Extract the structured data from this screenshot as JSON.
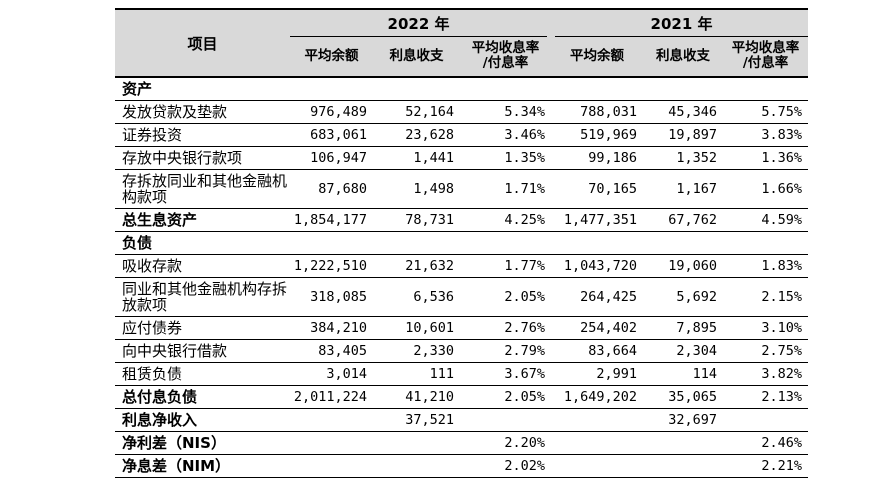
{
  "table": {
    "item_header": "项目",
    "year_groups": [
      {
        "label": "2022 年"
      },
      {
        "label": "2021 年"
      }
    ],
    "sub_columns": [
      {
        "label": "平均余额"
      },
      {
        "label": "利息收支"
      },
      {
        "line1": "平均收息率",
        "line2": "/付息率"
      },
      {
        "label": "平均余额"
      },
      {
        "label": "利息收支"
      },
      {
        "line1": "平均收息率",
        "line2": "/付息率"
      }
    ],
    "rows": [
      {
        "type": "section",
        "label": "资产"
      },
      {
        "type": "data",
        "label": "发放贷款及垫款",
        "cells": [
          "976,489",
          "52,164",
          "5.34%",
          "788,031",
          "45,346",
          "5.75%"
        ]
      },
      {
        "type": "data",
        "label": "证券投资",
        "cells": [
          "683,061",
          "23,628",
          "3.46%",
          "519,969",
          "19,897",
          "3.83%"
        ]
      },
      {
        "type": "data",
        "label": "存放中央银行款项",
        "cells": [
          "106,947",
          "1,441",
          "1.35%",
          "99,186",
          "1,352",
          "1.36%"
        ]
      },
      {
        "type": "data",
        "label": "存拆放同业和其他金融机构款项",
        "cells": [
          "87,680",
          "1,498",
          "1.71%",
          "70,165",
          "1,167",
          "1.66%"
        ]
      },
      {
        "type": "total",
        "label": "总生息资产",
        "cells": [
          "1,854,177",
          "78,731",
          "4.25%",
          "1,477,351",
          "67,762",
          "4.59%"
        ]
      },
      {
        "type": "section",
        "label": "负债"
      },
      {
        "type": "data",
        "label": "吸收存款",
        "cells": [
          "1,222,510",
          "21,632",
          "1.77%",
          "1,043,720",
          "19,060",
          "1.83%"
        ]
      },
      {
        "type": "data",
        "label": "同业和其他金融机构存拆放款项",
        "cells": [
          "318,085",
          "6,536",
          "2.05%",
          "264,425",
          "5,692",
          "2.15%"
        ]
      },
      {
        "type": "data",
        "label": "应付债券",
        "cells": [
          "384,210",
          "10,601",
          "2.76%",
          "254,402",
          "7,895",
          "3.10%"
        ]
      },
      {
        "type": "data",
        "label": "向中央银行借款",
        "cells": [
          "83,405",
          "2,330",
          "2.79%",
          "83,664",
          "2,304",
          "2.75%"
        ]
      },
      {
        "type": "data",
        "label": "租赁负债",
        "cells": [
          "3,014",
          "111",
          "3.67%",
          "2,991",
          "114",
          "3.82%"
        ]
      },
      {
        "type": "total",
        "label": "总付息负债",
        "cells": [
          "2,011,224",
          "41,210",
          "2.05%",
          "1,649,202",
          "35,065",
          "2.13%"
        ]
      },
      {
        "type": "total",
        "label": "利息净收入",
        "cells": [
          "",
          "37,521",
          "",
          "",
          "32,697",
          ""
        ]
      },
      {
        "type": "total",
        "label": "净利差（NIS）",
        "cells": [
          "",
          "",
          "2.20%",
          "",
          "",
          "2.46%"
        ]
      },
      {
        "type": "total",
        "label": "净息差（NIM）",
        "cells": [
          "",
          "",
          "2.02%",
          "",
          "",
          "2.21%"
        ]
      }
    ]
  },
  "colors": {
    "header_bg": "#d9d9d9",
    "border": "#000000",
    "text": "#000000"
  }
}
